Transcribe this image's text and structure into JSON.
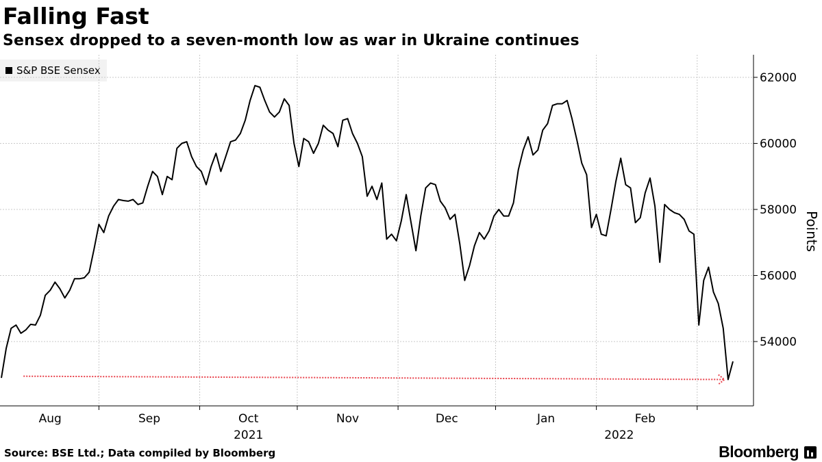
{
  "header": {
    "title": "Falling Fast",
    "subtitle": "Sensex dropped to a seven-month low as war in Ukraine continues"
  },
  "legend": {
    "label": "S&P BSE Sensex"
  },
  "footer": {
    "source": "Source: BSE Ltd.; Data compiled by Bloomberg",
    "brand": "Bloomberg"
  },
  "colors": {
    "line": "#000000",
    "grid": "#c8c8c8",
    "annotation": "#e8404a"
  },
  "chart_data": {
    "type": "line",
    "title": "Falling Fast",
    "subtitle": "Sensex dropped to a seven-month low as war in Ukraine continues",
    "ylabel": "Points",
    "xlabel": "",
    "ylim": [
      52000,
      62700
    ],
    "yticks": [
      54000,
      56000,
      58000,
      60000,
      62000
    ],
    "ytick_labels": [
      "54000",
      "56000",
      "58000",
      "60000",
      "62000"
    ],
    "grid": true,
    "x_range": [
      0,
      150
    ],
    "month_ticks": [
      {
        "label": "Aug",
        "x": 15
      },
      {
        "label": "Sep",
        "x": 45.5
      },
      {
        "label": "Oct",
        "x": 76
      },
      {
        "label": "Nov",
        "x": 106.5
      },
      {
        "label": "Dec",
        "x": 137
      },
      {
        "label": "Jan",
        "x": 167.5
      },
      {
        "label": "Feb",
        "x": 198
      }
    ],
    "month_boundaries": [
      30,
      61,
      91,
      122,
      152,
      183,
      214
    ],
    "x_end": 225,
    "year_labels": [
      {
        "label": "2021",
        "x": 76
      },
      {
        "label": "2022",
        "x": 190
      }
    ],
    "series": [
      {
        "name": "S&P BSE Sensex",
        "points": [
          [
            0,
            52900
          ],
          [
            1,
            53800
          ],
          [
            2,
            54400
          ],
          [
            3,
            54500
          ],
          [
            4,
            54250
          ],
          [
            5,
            54350
          ],
          [
            6,
            54520
          ],
          [
            7,
            54500
          ],
          [
            8,
            54800
          ],
          [
            9,
            55400
          ],
          [
            10,
            55550
          ],
          [
            11,
            55800
          ],
          [
            12,
            55600
          ],
          [
            13,
            55320
          ],
          [
            14,
            55550
          ],
          [
            15,
            55900
          ],
          [
            16,
            55900
          ],
          [
            17,
            55930
          ],
          [
            18,
            56100
          ],
          [
            19,
            56800
          ],
          [
            20,
            57550
          ],
          [
            21,
            57300
          ],
          [
            22,
            57800
          ],
          [
            23,
            58100
          ],
          [
            24,
            58300
          ],
          [
            25,
            58270
          ],
          [
            26,
            58250
          ],
          [
            27,
            58300
          ],
          [
            28,
            58150
          ],
          [
            29,
            58200
          ],
          [
            30,
            58700
          ],
          [
            31,
            59150
          ],
          [
            32,
            59000
          ],
          [
            33,
            58450
          ],
          [
            34,
            59000
          ],
          [
            35,
            58900
          ],
          [
            36,
            59850
          ],
          [
            37,
            60000
          ],
          [
            38,
            60050
          ],
          [
            39,
            59600
          ],
          [
            40,
            59300
          ],
          [
            41,
            59150
          ],
          [
            42,
            58750
          ],
          [
            43,
            59300
          ],
          [
            44,
            59700
          ],
          [
            45,
            59150
          ],
          [
            46,
            59600
          ],
          [
            47,
            60050
          ],
          [
            48,
            60100
          ],
          [
            49,
            60300
          ],
          [
            50,
            60700
          ],
          [
            51,
            61300
          ],
          [
            52,
            61750
          ],
          [
            53,
            61700
          ],
          [
            54,
            61300
          ],
          [
            55,
            60950
          ],
          [
            56,
            60800
          ],
          [
            57,
            60950
          ],
          [
            58,
            61350
          ],
          [
            59,
            61150
          ],
          [
            60,
            60000
          ],
          [
            61,
            59300
          ],
          [
            62,
            60150
          ],
          [
            63,
            60050
          ],
          [
            64,
            59700
          ],
          [
            65,
            60000
          ],
          [
            66,
            60550
          ],
          [
            67,
            60400
          ],
          [
            68,
            60300
          ],
          [
            69,
            59900
          ],
          [
            70,
            60700
          ],
          [
            71,
            60750
          ],
          [
            72,
            60300
          ],
          [
            73,
            60000
          ],
          [
            74,
            59600
          ],
          [
            75,
            58400
          ],
          [
            76,
            58700
          ],
          [
            77,
            58300
          ],
          [
            78,
            58800
          ],
          [
            79,
            57100
          ],
          [
            80,
            57250
          ],
          [
            81,
            57050
          ],
          [
            82,
            57650
          ],
          [
            83,
            58450
          ],
          [
            84,
            57600
          ],
          [
            85,
            56750
          ],
          [
            86,
            57800
          ],
          [
            87,
            58650
          ],
          [
            88,
            58800
          ],
          [
            89,
            58750
          ],
          [
            90,
            58250
          ],
          [
            91,
            58050
          ],
          [
            92,
            57700
          ],
          [
            93,
            57850
          ],
          [
            94,
            56950
          ],
          [
            95,
            55850
          ],
          [
            96,
            56300
          ],
          [
            97,
            56900
          ],
          [
            98,
            57300
          ],
          [
            99,
            57100
          ],
          [
            100,
            57350
          ],
          [
            101,
            57800
          ],
          [
            102,
            58000
          ],
          [
            103,
            57800
          ],
          [
            104,
            57800
          ],
          [
            105,
            58200
          ],
          [
            106,
            59200
          ],
          [
            107,
            59800
          ],
          [
            108,
            60200
          ],
          [
            109,
            59650
          ],
          [
            110,
            59800
          ],
          [
            111,
            60400
          ],
          [
            112,
            60600
          ],
          [
            113,
            61150
          ],
          [
            114,
            61200
          ],
          [
            115,
            61200
          ],
          [
            116,
            61300
          ],
          [
            117,
            60750
          ],
          [
            118,
            60100
          ],
          [
            119,
            59400
          ],
          [
            120,
            59050
          ],
          [
            121,
            57450
          ],
          [
            122,
            57850
          ],
          [
            123,
            57250
          ],
          [
            124,
            57200
          ],
          [
            125,
            58000
          ],
          [
            126,
            58850
          ],
          [
            127,
            59550
          ],
          [
            128,
            58750
          ],
          [
            129,
            58650
          ],
          [
            130,
            57600
          ],
          [
            131,
            57750
          ],
          [
            132,
            58500
          ],
          [
            133,
            58950
          ],
          [
            134,
            58100
          ],
          [
            135,
            56400
          ],
          [
            136,
            58150
          ],
          [
            137,
            58000
          ],
          [
            138,
            57900
          ],
          [
            139,
            57850
          ],
          [
            140,
            57700
          ],
          [
            141,
            57350
          ],
          [
            142,
            57250
          ],
          [
            143,
            54500
          ],
          [
            144,
            55850
          ],
          [
            145,
            56250
          ],
          [
            146,
            55500
          ],
          [
            147,
            55150
          ],
          [
            148,
            54400
          ],
          [
            149,
            52850
          ],
          [
            150,
            53400
          ]
        ]
      }
    ],
    "annotations": [
      {
        "type": "dotted-arrow",
        "from": [
          2,
          52950
        ],
        "to": [
          148.7,
          52850
        ]
      }
    ]
  }
}
